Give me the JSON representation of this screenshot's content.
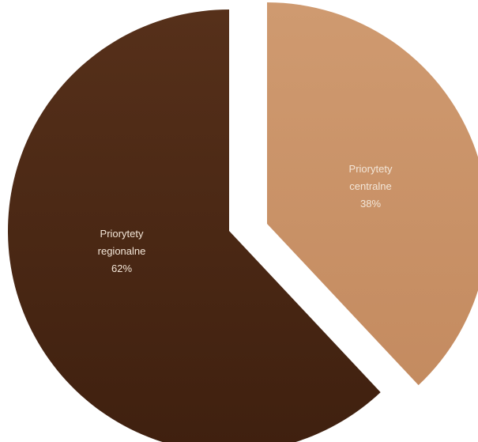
{
  "chart_data": {
    "type": "pie",
    "exploded": true,
    "slices": [
      {
        "name_lines": [
          "Priorytety",
          "centralne"
        ],
        "label": "38%",
        "value": 38,
        "color": "#c9936a"
      },
      {
        "name_lines": [
          "Priorytety",
          "regionalne"
        ],
        "label": "62%",
        "value": 62,
        "color": "#4f2b16"
      }
    ]
  }
}
